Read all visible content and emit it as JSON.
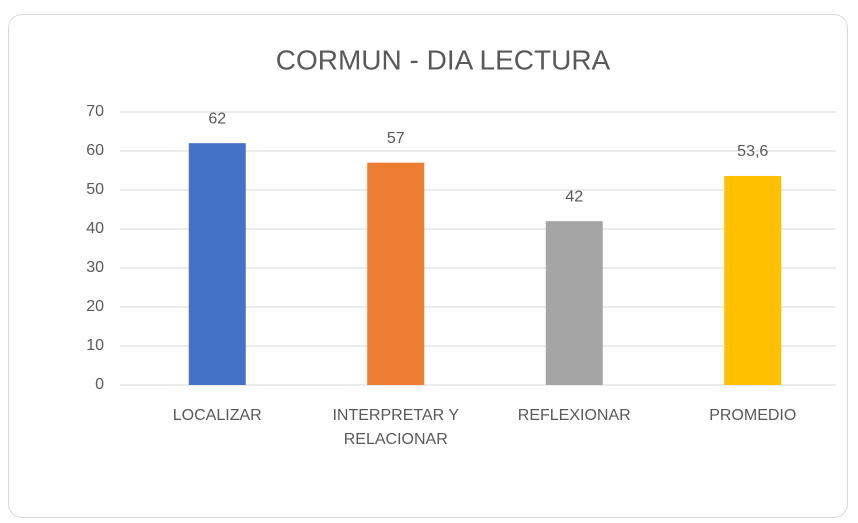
{
  "chart_data": {
    "type": "bar",
    "title": "CORMUN - DIA LECTURA",
    "categories": [
      "LOCALIZAR",
      "INTERPRETAR Y RELACIONAR",
      "REFLEXIONAR",
      "PROMEDIO"
    ],
    "values": [
      62,
      57,
      42,
      53.6
    ],
    "value_labels": [
      "62",
      "57",
      "42",
      "53,6"
    ],
    "colors": [
      "#4472c4",
      "#ed7d31",
      "#a5a5a5",
      "#ffc000"
    ],
    "ylim": [
      0,
      70
    ],
    "yticks": [
      0,
      10,
      20,
      30,
      40,
      50,
      60,
      70
    ],
    "grid": true
  }
}
